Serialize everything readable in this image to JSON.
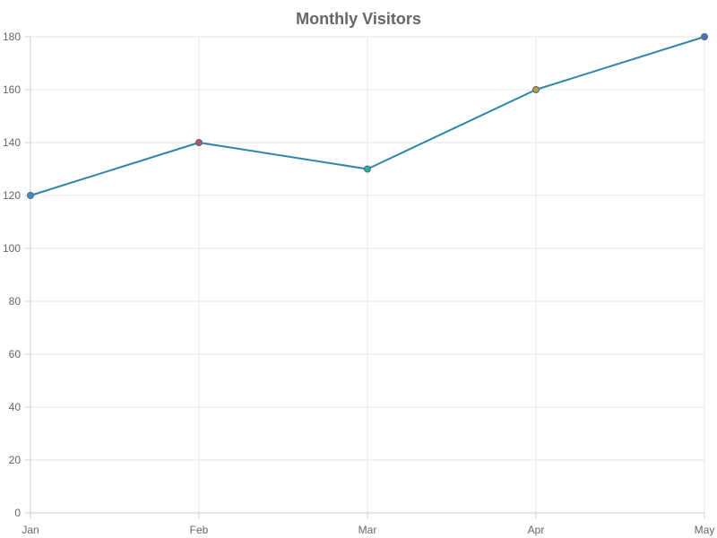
{
  "chart_data": {
    "type": "line",
    "title": "Monthly Visitors",
    "categories": [
      "Jan",
      "Feb",
      "Mar",
      "Apr",
      "May"
    ],
    "series": [
      {
        "values": [
          120,
          140,
          130,
          160,
          180
        ],
        "line_color": "#2e86a8"
      }
    ],
    "point_colors": [
      "#3a8fc4",
      "#b9505f",
      "#26b09a",
      "#b8a23a",
      "#4a72b8"
    ],
    "point_border_color": "#4a6a8a",
    "ylim": [
      0,
      180
    ],
    "yticks": [
      0,
      20,
      40,
      60,
      80,
      100,
      120,
      140,
      160,
      180
    ],
    "grid": true,
    "grid_color": "#e4e4e4",
    "axis_color": "#cccccc",
    "xlabel": "",
    "ylabel": "",
    "legend": "none"
  }
}
